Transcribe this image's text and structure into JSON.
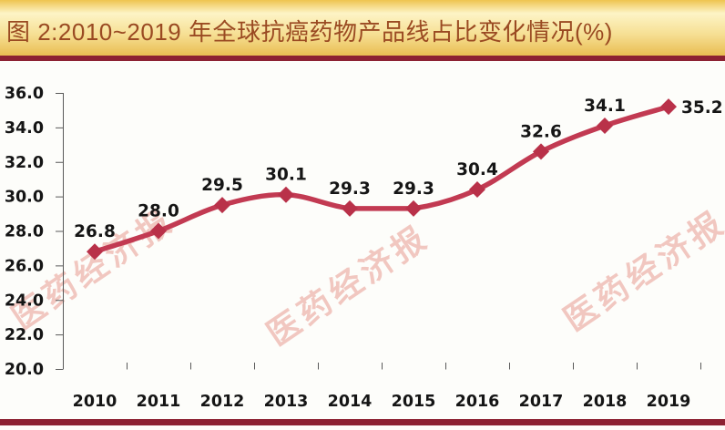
{
  "title_bar": {
    "title": "图 2:2010~2019 年全球抗癌药物产品线占比变化情况(%)"
  },
  "watermark": {
    "text": "医药经济报"
  },
  "colors": {
    "title_text": "#9a4a22",
    "title_rule": "#8c2132",
    "footer_rule": "#8c2132",
    "gold_top": "#eec44f",
    "gold_light": "#fdf4c6",
    "gold_mid": "#f6df93",
    "gold_bottom": "#e9bd52",
    "line": "#c23a52",
    "marker": "#b93149",
    "axis": "#595959",
    "label": "#151515",
    "watermark": "#e89b92"
  },
  "chart_data": {
    "type": "line",
    "title": "图 2:2010~2019 年全球抗癌药物产品线占比变化情况(%)",
    "categories": [
      "2010",
      "2011",
      "2012",
      "2013",
      "2014",
      "2015",
      "2016",
      "2017",
      "2018",
      "2019"
    ],
    "values": [
      26.8,
      28.0,
      29.5,
      30.1,
      29.3,
      29.3,
      30.4,
      32.6,
      34.1,
      35.2
    ],
    "data_labels": [
      "26.8",
      "28.0",
      "29.5",
      "30.1",
      "29.3",
      "29.3",
      "30.4",
      "32.6",
      "34.1",
      "35.2"
    ],
    "ytick_labels": [
      "36.0",
      "34.0",
      "32.0",
      "30.0",
      "28.0",
      "26.0",
      "24.0",
      "22.0",
      "20.0"
    ],
    "ylim": [
      20.0,
      36.0
    ],
    "ytick_step": 2.0,
    "xlabel": "",
    "ylabel": "",
    "grid": false,
    "legend": "none",
    "marker": "diamond",
    "smoothed": true
  }
}
